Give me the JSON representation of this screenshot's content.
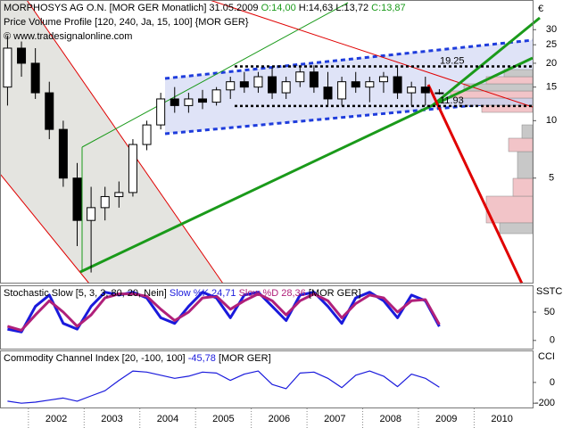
{
  "header": {
    "title": "MORPHOSYS AG O.N. [MOR GER Monatlich] 31.05.2009",
    "ohlc": [
      "O:14,00",
      "H:14,63",
      "L:13,72",
      "C:13,87"
    ],
    "subtitle": "Price Volume Profile [120, 240, Ja, 15, 100] {MOR GER}",
    "copyright": "© www.tradesignalonline.com"
  },
  "xaxis": {
    "xlim": [
      2001.49,
      2011.05
    ],
    "xticks": [
      {
        "value": 2002.5,
        "label": "2002"
      },
      {
        "value": 2003.5,
        "label": "2003"
      },
      {
        "value": 2004.5,
        "label": "2004"
      },
      {
        "value": 2005.5,
        "label": "2005"
      },
      {
        "value": 2006.5,
        "label": "2006"
      },
      {
        "value": 2007.5,
        "label": "2007"
      },
      {
        "value": 2008.5,
        "label": "2008"
      },
      {
        "value": 2009.5,
        "label": "2009"
      },
      {
        "value": 2010.5,
        "label": "2010"
      }
    ]
  },
  "chart_data": [
    {
      "type": "candlestick",
      "axis_label": "€",
      "log_scale": true,
      "ylim": [
        1.4,
        42
      ],
      "yticks": [
        5,
        10,
        15,
        20,
        25,
        30
      ],
      "up_color": "#ffffff",
      "down_color": "#000000",
      "x": [
        2001.625,
        2001.875,
        2002.125,
        2002.375,
        2002.625,
        2002.875,
        2003.125,
        2003.375,
        2003.625,
        2003.875,
        2004.125,
        2004.375,
        2004.625,
        2004.875,
        2005.125,
        2005.375,
        2005.625,
        2005.875,
        2006.125,
        2006.375,
        2006.625,
        2006.875,
        2007.125,
        2007.375,
        2007.625,
        2007.875,
        2008.125,
        2008.375,
        2008.625,
        2008.875,
        2009.125,
        2009.375
      ],
      "open": [
        15,
        24,
        20,
        14,
        9,
        5,
        3,
        3.5,
        4,
        4.2,
        7.5,
        9.5,
        13,
        12,
        13,
        12.5,
        14.5,
        16,
        15,
        17,
        14,
        16,
        18,
        15,
        13,
        16,
        15,
        16,
        17,
        14,
        15,
        14.0
      ],
      "high": [
        28,
        26,
        24,
        16,
        10,
        6,
        4.5,
        4.5,
        4.8,
        8,
        10,
        14,
        15,
        14,
        14.5,
        15,
        17,
        18,
        18,
        19,
        17,
        19,
        19.5,
        18,
        17,
        18,
        17,
        18,
        19.5,
        16,
        17,
        14.63
      ],
      "low": [
        12,
        17,
        13,
        8,
        4.5,
        2.2,
        1.6,
        3,
        3.5,
        4,
        7,
        9,
        11,
        11,
        11.5,
        12,
        13,
        14,
        14,
        13,
        13,
        15,
        14,
        12,
        12,
        14,
        12.5,
        14,
        13,
        12,
        12,
        13.72
      ],
      "close": [
        24,
        20,
        14,
        9,
        5,
        3,
        3.5,
        4,
        4.2,
        7.5,
        9.5,
        13,
        12,
        13,
        12.5,
        14.5,
        16,
        15,
        17,
        14,
        16,
        18,
        15,
        13,
        16,
        15,
        16,
        17,
        14,
        15,
        14.0,
        13.87
      ],
      "annotations": [
        {
          "value": 19.25,
          "label": "19.25"
        },
        {
          "value": 11.93,
          "label": "11.93"
        }
      ]
    },
    {
      "type": "line",
      "title": "Stochastic Slow [5, 3, 3, 80, 20, Nein]",
      "suffix": "[MOR GER]",
      "axis_label": "SSTC",
      "ylim": [
        -16,
        94
      ],
      "yticks": [
        0,
        50
      ],
      "series": [
        {
          "name": "Slow %K",
          "color": "#1a1adc",
          "last_label": "24,71",
          "values": [
            20,
            15,
            60,
            80,
            30,
            20,
            60,
            85,
            80,
            85,
            75,
            40,
            30,
            60,
            85,
            75,
            40,
            80,
            85,
            60,
            35,
            80,
            85,
            60,
            30,
            75,
            85,
            70,
            40,
            80,
            70,
            24.71
          ]
        },
        {
          "name": "Slow %D",
          "color": "#b0207a",
          "last_label": "28,36",
          "values": [
            25,
            18,
            45,
            70,
            50,
            25,
            45,
            75,
            82,
            82,
            78,
            55,
            35,
            50,
            75,
            78,
            55,
            70,
            82,
            70,
            45,
            70,
            82,
            70,
            40,
            65,
            80,
            75,
            50,
            70,
            72,
            28.36
          ]
        }
      ]
    },
    {
      "type": "line",
      "title": "Commodity Channel Index [20, -100, 100]",
      "suffix": "[MOR GER]",
      "axis_label": "CCI",
      "ylim": [
        -250,
        300
      ],
      "yticks": [
        0,
        -200
      ],
      "series": [
        {
          "color": "#1a1adc",
          "last_label": "-45,78",
          "values": [
            -180,
            -200,
            -190,
            -170,
            -150,
            -180,
            -130,
            -80,
            20,
            110,
            100,
            70,
            40,
            60,
            100,
            90,
            20,
            80,
            110,
            -20,
            -60,
            90,
            100,
            40,
            -50,
            70,
            110,
            60,
            -40,
            80,
            40,
            -45.78
          ]
        }
      ]
    }
  ]
}
